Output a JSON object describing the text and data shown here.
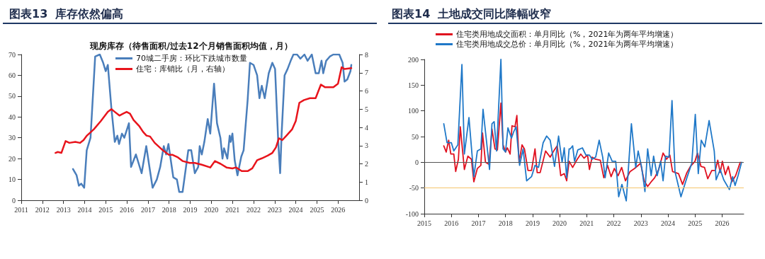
{
  "chart_data": [
    {
      "type": "line",
      "title": "图表13  库存依然偏高",
      "subtitle": "现房库存（待售面积/过去12个月销售面积均值，月）",
      "xlim": [
        2011,
        2027
      ],
      "xticks": [
        2011,
        2012,
        2013,
        2014,
        2015,
        2016,
        2017,
        2018,
        2019,
        2020,
        2021,
        2022,
        2023,
        2024,
        2025,
        2026
      ],
      "ylim": [
        0,
        70
      ],
      "yticks": [
        0,
        10,
        20,
        30,
        40,
        50,
        60,
        70
      ],
      "y2lim": [
        0,
        8
      ],
      "y2ticks": [
        0,
        1,
        2,
        3,
        4,
        5,
        6,
        7,
        8
      ],
      "grid": false,
      "legend": "top",
      "marker": "none",
      "line_style": "solid",
      "series": [
        {
          "name": "70城二手房：环比下跌城市数量",
          "color": "#4a7ebb",
          "x": [
            2013.45,
            2013.62,
            2013.73,
            2013.84,
            2013.98,
            2014.1,
            2014.28,
            2014.5,
            2014.72,
            2014.88,
            2015.0,
            2015.1,
            2015.27,
            2015.43,
            2015.55,
            2015.63,
            2015.77,
            2015.88,
            2016.1,
            2016.2,
            2016.43,
            2016.7,
            2016.92,
            2017.22,
            2017.42,
            2017.58,
            2017.75,
            2017.86,
            2017.97,
            2018.2,
            2018.37,
            2018.48,
            2018.64,
            2018.91,
            2019.05,
            2019.22,
            2019.38,
            2019.45,
            2019.55,
            2019.67,
            2019.83,
            2019.95,
            2020.13,
            2020.27,
            2020.43,
            2020.53,
            2020.6,
            2020.76,
            2020.87,
            2020.92,
            2021.0,
            2021.11,
            2021.24,
            2021.42,
            2021.53,
            2021.72,
            2021.83,
            2022.0,
            2022.17,
            2022.28,
            2022.39,
            2022.53,
            2022.72,
            2022.89,
            2023.02,
            2023.17,
            2023.26,
            2023.33,
            2023.47,
            2023.61,
            2023.76,
            2023.89,
            2024.06,
            2024.22,
            2024.41,
            2024.56,
            2024.76,
            2024.94,
            2025.09,
            2025.22,
            2025.3,
            2025.44,
            2025.61,
            2025.78,
            2026.06,
            2026.22,
            2026.31,
            2026.44,
            2026.59,
            2026.63
          ],
          "values": [
            15,
            12,
            7,
            8,
            6,
            24,
            30,
            69,
            70,
            66,
            62,
            65,
            44,
            28,
            31,
            27,
            32,
            30,
            37,
            16,
            22,
            13,
            26,
            6,
            10,
            16,
            26,
            22,
            27,
            11,
            10,
            4,
            4,
            24,
            24,
            13,
            16,
            26,
            22,
            28,
            39,
            32,
            56,
            37,
            30,
            20,
            25,
            20,
            31,
            28,
            32,
            19,
            12,
            21,
            24,
            48,
            66,
            65,
            60,
            49,
            55,
            49,
            61,
            66,
            63,
            28,
            13,
            32,
            60,
            63,
            67,
            70,
            70,
            68,
            70,
            67,
            70,
            61,
            61,
            67,
            61,
            67,
            69,
            70,
            70,
            66,
            57,
            58,
            62,
            65
          ]
        },
        {
          "name": "住宅：库销比（月，右轴）",
          "color": "#e8141c",
          "axis": "y2",
          "x": [
            2012.62,
            2012.73,
            2012.9,
            2013.1,
            2013.28,
            2013.56,
            2013.78,
            2013.95,
            2014.11,
            2014.44,
            2014.77,
            2015.1,
            2015.27,
            2015.43,
            2015.65,
            2015.82,
            2015.99,
            2016.15,
            2016.32,
            2016.6,
            2016.77,
            2016.93,
            2017.1,
            2017.32,
            2017.65,
            2017.98,
            2018.15,
            2018.42,
            2018.65,
            2018.98,
            2019.22,
            2019.55,
            2019.95,
            2020.17,
            2020.44,
            2020.72,
            2021.0,
            2021.17,
            2021.44,
            2021.72,
            2021.94,
            2022.17,
            2022.39,
            2022.67,
            2022.89,
            2023.06,
            2023.2,
            2023.36,
            2023.56,
            2023.83,
            2024.0,
            2024.17,
            2024.39,
            2024.67,
            2024.94,
            2025.19,
            2025.39,
            2025.78,
            2026.0,
            2026.17,
            2026.31,
            2026.63
          ],
          "values": [
            2.6,
            2.65,
            2.6,
            3.25,
            3.15,
            3.2,
            3.15,
            3.3,
            3.55,
            3.9,
            4.35,
            4.85,
            5.0,
            4.85,
            4.65,
            4.75,
            4.85,
            4.75,
            4.4,
            4.05,
            3.75,
            3.55,
            3.5,
            3.15,
            2.8,
            2.5,
            2.5,
            2.35,
            2.15,
            2.05,
            2.05,
            1.95,
            1.8,
            2.15,
            2.0,
            1.8,
            1.75,
            1.8,
            1.6,
            1.6,
            1.75,
            2.2,
            2.3,
            2.45,
            2.6,
            2.9,
            3.4,
            3.3,
            3.55,
            3.9,
            4.35,
            5.35,
            5.5,
            5.6,
            5.6,
            6.35,
            6.2,
            6.2,
            6.4,
            7.3,
            7.2,
            7.25
          ]
        }
      ]
    },
    {
      "type": "line",
      "title": "图表14  土地成交同比降幅收窄",
      "xlim": [
        2015,
        2026.8
      ],
      "xticks": [
        2015,
        2016,
        2017,
        2018,
        2019,
        2020,
        2021,
        2022,
        2023,
        2024,
        2025,
        2026
      ],
      "ylim": [
        -100,
        200
      ],
      "yticks": [
        -100,
        -50,
        0,
        50,
        100,
        150,
        200
      ],
      "grid": false,
      "legend": "top",
      "marker": "none",
      "line_style": "solid",
      "ref_lines": [
        {
          "axis": "y",
          "value": 0,
          "color": "#555555"
        },
        {
          "axis": "y",
          "value": -50,
          "color": "#f5c56b"
        }
      ],
      "series": [
        {
          "name": "住宅类用地成交面积：单月同比（%，2021年为两年平均增速）",
          "color": "#e0101f",
          "x": [
            2015.72,
            2015.81,
            2015.9,
            2015.98,
            2016.09,
            2016.16,
            2016.26,
            2016.33,
            2016.48,
            2016.61,
            2016.74,
            2016.83,
            2016.96,
            2017.09,
            2017.15,
            2017.26,
            2017.39,
            2017.5,
            2017.61,
            2017.7,
            2017.83,
            2017.91,
            2018.0,
            2018.07,
            2018.17,
            2018.24,
            2018.35,
            2018.42,
            2018.5,
            2018.61,
            2018.7,
            2018.83,
            2018.96,
            2019.09,
            2019.17,
            2019.28,
            2019.48,
            2019.65,
            2019.78,
            2019.91,
            2020.04,
            2020.17,
            2020.26,
            2020.35,
            2020.48,
            2020.65,
            2020.78,
            2020.9,
            2021.03,
            2021.1,
            2021.2,
            2021.32,
            2021.5,
            2021.63,
            2021.77,
            2021.9,
            2022.02,
            2022.16,
            2022.29,
            2022.43,
            2022.6,
            2022.77,
            2022.99,
            2023.12,
            2023.25,
            2023.38,
            2023.51,
            2023.66,
            2023.82,
            2023.95,
            2024.07,
            2024.17,
            2024.28,
            2024.39,
            2024.54,
            2024.7,
            2024.83,
            2025.0,
            2025.09,
            2025.22,
            2025.35,
            2025.47,
            2025.62,
            2025.75,
            2025.84,
            2025.93,
            2026.01,
            2026.12,
            2026.23,
            2026.36,
            2026.5,
            2026.67
          ],
          "values": [
            32,
            20,
            43,
            16,
            16,
            -18,
            6,
            69,
            -14,
            12,
            6,
            -38,
            -12,
            -6,
            57,
            0,
            -4,
            65,
            26,
            24,
            115,
            34,
            20,
            28,
            16,
            71,
            69,
            91,
            0,
            34,
            26,
            -16,
            -16,
            26,
            -20,
            -20,
            22,
            10,
            22,
            32,
            -26,
            -22,
            -36,
            2,
            -10,
            6,
            16,
            8,
            14,
            -14,
            10,
            6,
            4,
            -30,
            -6,
            -28,
            -12,
            -26,
            -10,
            -36,
            -18,
            -12,
            -2,
            -36,
            -47,
            -38,
            -30,
            -14,
            18,
            6,
            14,
            -18,
            -20,
            -22,
            -43,
            -20,
            -8,
            2,
            18,
            -8,
            -10,
            -32,
            -16,
            -16,
            4,
            -20,
            2,
            -24,
            -8,
            -38,
            -26,
            0
          ]
        },
        {
          "name": "住宅类用地成交总价：单月同比（%，2021年为两年平均增速）",
          "color": "#1f78c8",
          "x": [
            2015.72,
            2015.84,
            2016.0,
            2016.09,
            2016.24,
            2016.39,
            2016.48,
            2016.65,
            2016.83,
            2016.96,
            2017.09,
            2017.17,
            2017.3,
            2017.41,
            2017.5,
            2017.58,
            2017.67,
            2017.83,
            2017.91,
            2018.0,
            2018.09,
            2018.22,
            2018.3,
            2018.39,
            2018.52,
            2018.65,
            2018.78,
            2018.96,
            2019.09,
            2019.22,
            2019.39,
            2019.52,
            2019.65,
            2019.81,
            2019.96,
            2020.09,
            2020.17,
            2020.26,
            2020.35,
            2020.39,
            2020.48,
            2020.55,
            2020.67,
            2020.84,
            2020.97,
            2021.1,
            2021.2,
            2021.33,
            2021.46,
            2021.59,
            2021.68,
            2021.81,
            2021.94,
            2022.07,
            2022.18,
            2022.3,
            2022.46,
            2022.65,
            2022.81,
            2022.9,
            2023.03,
            2023.15,
            2023.25,
            2023.38,
            2023.47,
            2023.6,
            2023.73,
            2023.82,
            2023.91,
            2024.04,
            2024.15,
            2024.26,
            2024.48,
            2024.7,
            2024.88,
            2025.01,
            2025.12,
            2025.23,
            2025.36,
            2025.52,
            2025.71,
            2025.78,
            2025.93,
            2026.06,
            2026.27,
            2026.39,
            2026.48,
            2026.59,
            2026.72
          ],
          "values": [
            75,
            38,
            38,
            22,
            34,
            190,
            16,
            87,
            -28,
            22,
            26,
            103,
            40,
            -14,
            75,
            79,
            22,
            200,
            26,
            20,
            67,
            47,
            59,
            69,
            -6,
            26,
            -36,
            -28,
            -6,
            -10,
            38,
            51,
            43,
            -8,
            51,
            0,
            28,
            -30,
            26,
            26,
            32,
            2,
            24,
            28,
            14,
            14,
            6,
            10,
            43,
            10,
            -30,
            18,
            2,
            2,
            -67,
            -43,
            -75,
            75,
            -10,
            22,
            -10,
            -57,
            26,
            -26,
            12,
            -26,
            2,
            -36,
            12,
            10,
            120,
            -18,
            -67,
            -30,
            -2,
            93,
            -22,
            43,
            30,
            81,
            22,
            -34,
            -14,
            -34,
            -53,
            -28,
            -45,
            -26,
            0
          ]
        }
      ]
    }
  ]
}
